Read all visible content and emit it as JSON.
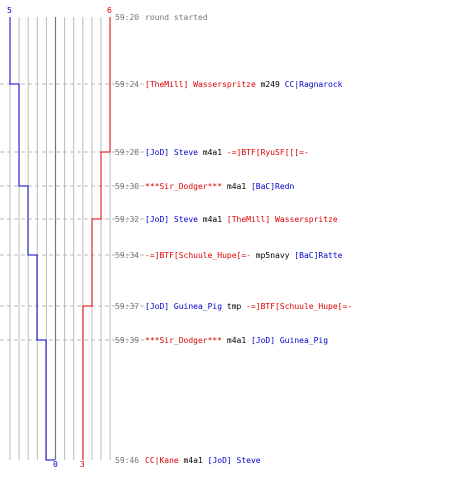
{
  "colors": {
    "blue": "#0000cc",
    "red": "#dd0000",
    "time": "#777777",
    "text": "#000000",
    "grid": "#bbbbbb",
    "center": "#777777",
    "dash": "#bbbbbb"
  },
  "timeline": {
    "blue_start": "5",
    "blue_end": "0",
    "red_start": "6",
    "red_end": "3",
    "events": [
      {
        "time": "59:20",
        "segments": [
          {
            "text": "round started",
            "team": "info"
          }
        ]
      },
      {
        "time": "59:24",
        "segments": [
          {
            "text": "[TheMill] Wasserspritze",
            "team": "red"
          },
          {
            "text": " m249 ",
            "team": "weapon"
          },
          {
            "text": "CC|Ragnarock",
            "team": "blue"
          }
        ]
      },
      {
        "time": "59:28",
        "segments": [
          {
            "text": "[JoD] Steve",
            "team": "blue"
          },
          {
            "text": " m4a1 ",
            "team": "weapon"
          },
          {
            "text": "-=]BTF[RyuSF[[[=-",
            "team": "red"
          }
        ]
      },
      {
        "time": "59:30",
        "segments": [
          {
            "text": "***Sir_Dodger***",
            "team": "red"
          },
          {
            "text": " m4a1 ",
            "team": "weapon"
          },
          {
            "text": "[BaC]Redn",
            "team": "blue"
          }
        ]
      },
      {
        "time": "59:32",
        "segments": [
          {
            "text": "[JoD] Steve",
            "team": "blue"
          },
          {
            "text": " m4a1 ",
            "team": "weapon"
          },
          {
            "text": "[TheMill] Wasserspritze",
            "team": "red"
          }
        ]
      },
      {
        "time": "59:34",
        "segments": [
          {
            "text": "-=]BTF[Schuule_Hupe[=-",
            "team": "red"
          },
          {
            "text": " mp5navy ",
            "team": "weapon"
          },
          {
            "text": "[BaC]Ratte",
            "team": "blue"
          }
        ]
      },
      {
        "time": "59:37",
        "segments": [
          {
            "text": "[JoD] Guinea_Pig",
            "team": "blue"
          },
          {
            "text": " tmp ",
            "team": "weapon"
          },
          {
            "text": "-=]BTF[Schuule_Hupe[=-",
            "team": "red"
          }
        ]
      },
      {
        "time": "59:39",
        "segments": [
          {
            "text": "***Sir_Dodger***",
            "team": "red"
          },
          {
            "text": " m4a1 ",
            "team": "weapon"
          },
          {
            "text": "[JoD] Guinea_Pig",
            "team": "blue"
          }
        ]
      },
      {
        "time": "59:46",
        "segments": [
          {
            "text": "CC|Kane",
            "team": "red"
          },
          {
            "text": " m4a1 ",
            "team": "weapon"
          },
          {
            "text": "[JoD] Steve",
            "team": "blue"
          }
        ]
      }
    ]
  }
}
